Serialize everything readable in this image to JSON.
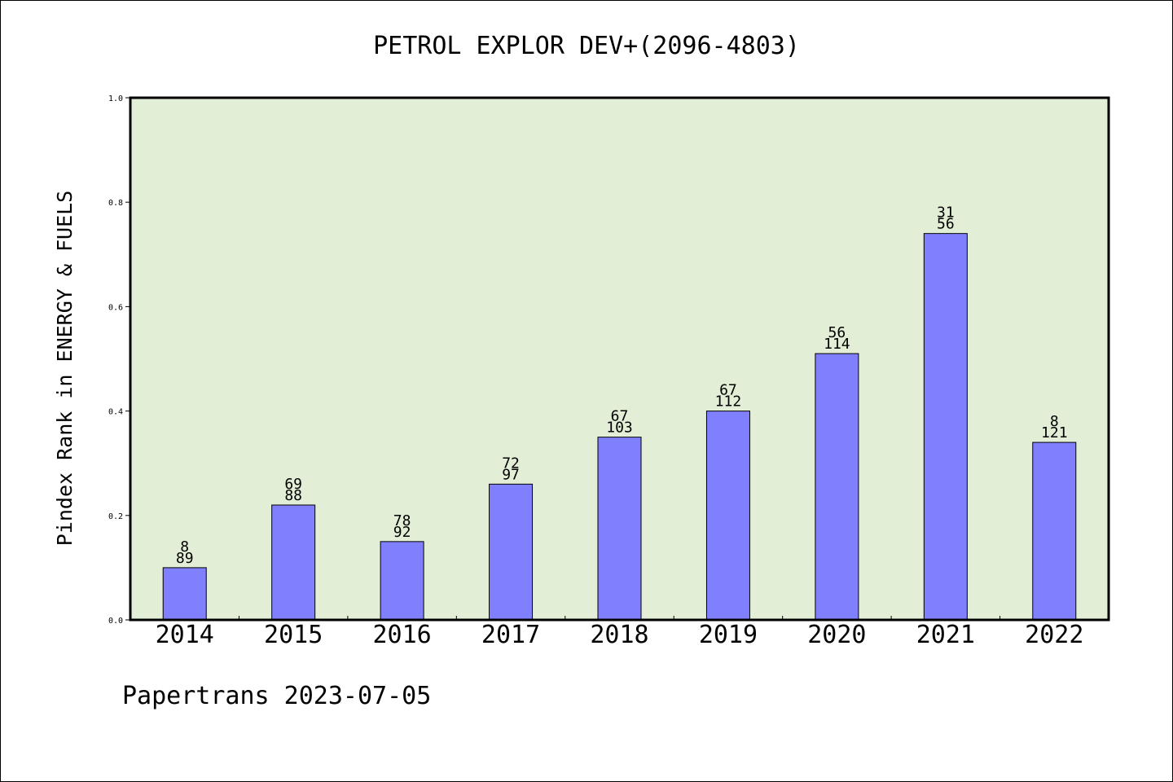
{
  "chart_data": {
    "type": "bar",
    "title": "PETROL EXPLOR DEV+(2096-4803)",
    "ylabel": "Pindex Rank in ENERGY & FUELS",
    "xlabel": "",
    "footer": "Papertrans 2023-07-05",
    "ylim": [
      0,
      1.0
    ],
    "yticks": [
      "0.0",
      "0.2",
      "0.4",
      "0.6",
      "0.8",
      "1.0"
    ],
    "categories": [
      "2014",
      "2015",
      "2016",
      "2017",
      "2018",
      "2019",
      "2020",
      "2021",
      "2022"
    ],
    "values": [
      0.1,
      0.22,
      0.15,
      0.26,
      0.35,
      0.4,
      0.51,
      0.74,
      0.34
    ],
    "label_top": [
      "8",
      "69",
      "78",
      "72",
      "67",
      "67",
      "56",
      "31",
      "8"
    ],
    "label_bottom": [
      "89",
      "88",
      "92",
      "97",
      "103",
      "112",
      "114",
      "56",
      "121"
    ],
    "grid": false,
    "colors": {
      "plot_background": "#e2efd6",
      "bar_fill": "#8080ff",
      "bar_stroke": "#000000"
    }
  }
}
